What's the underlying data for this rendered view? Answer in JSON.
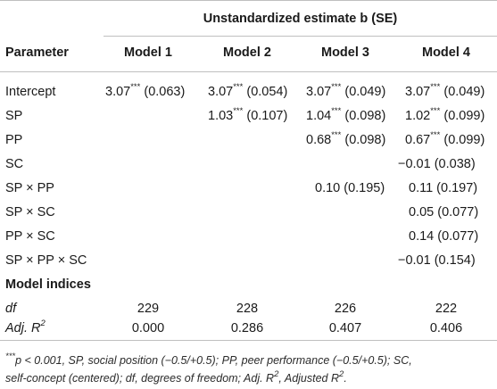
{
  "table": {
    "group_header": "Unstandardized estimate b (SE)",
    "param_header": "Parameter",
    "models": [
      "Model 1",
      "Model 2",
      "Model 3",
      "Model 4"
    ],
    "rows": [
      {
        "label": "Intercept",
        "cells": [
          "3.07",
          "(0.063)",
          "3.07",
          "(0.054)",
          "3.07",
          "(0.049)",
          "3.07",
          "(0.049)"
        ]
      },
      {
        "label": "SP",
        "cells": [
          "",
          "",
          "1.03",
          "(0.107)",
          "1.04",
          "(0.098)",
          "1.02",
          "(0.099)"
        ]
      },
      {
        "label": "PP",
        "cells": [
          "",
          "",
          "",
          "",
          "0.68",
          "(0.098)",
          "0.67",
          "(0.099)"
        ]
      },
      {
        "label": "SC",
        "cells": [
          "",
          "",
          "",
          "",
          "",
          "",
          "−0.01 (0.038)",
          ""
        ]
      },
      {
        "label": "SP × PP",
        "cells": [
          "",
          "",
          "",
          "",
          "0.10 (0.195)",
          "",
          "0.11 (0.197)",
          ""
        ]
      },
      {
        "label": "SP × SC",
        "cells": [
          "",
          "",
          "",
          "",
          "",
          "",
          "0.05 (0.077)",
          ""
        ]
      },
      {
        "label": "PP × SC",
        "cells": [
          "",
          "",
          "",
          "",
          "",
          "",
          "0.14 (0.077)",
          ""
        ]
      },
      {
        "label": "SP × PP × SC",
        "cells": [
          "",
          "",
          "",
          "",
          "",
          "",
          "−0.01 (0.154)",
          ""
        ]
      }
    ],
    "sig": "***",
    "indices_header": "Model indices",
    "df_label": "df",
    "df_values": [
      "229",
      "228",
      "226",
      "222"
    ],
    "adjr_label_prefix": "Adj. R",
    "adjr_label_sup": "2",
    "adjr_values": [
      "0.000",
      "0.286",
      "0.407",
      "0.406"
    ]
  },
  "note": {
    "line1_sup": "***",
    "line1": "p < 0.001, SP, social position (−0.5/+0.5); PP, peer performance (−0.5/+0.5); SC,",
    "line2_a": "self-concept (centered); df, degrees of freedom; Adj. R",
    "line2_sup1": "2",
    "line2_b": ", Adjusted R",
    "line2_sup2": "2",
    "line2_c": "."
  }
}
